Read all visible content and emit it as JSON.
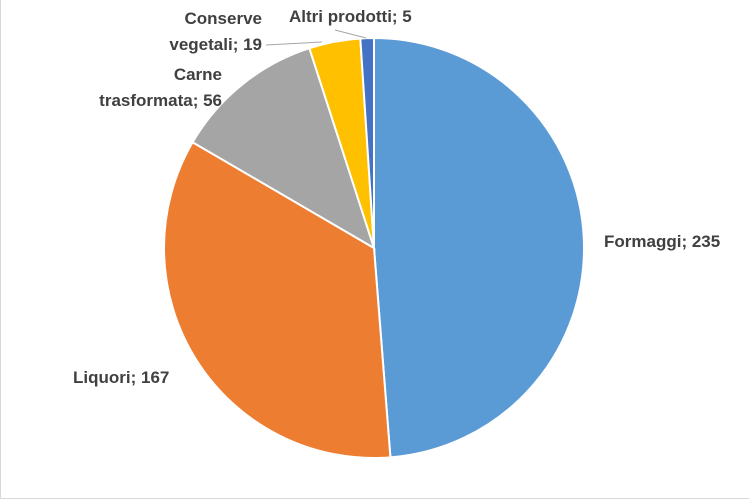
{
  "chart_data": {
    "type": "pie",
    "categories": [
      "Formaggi",
      "Liquori",
      "Carne trasformata",
      "Conserve vegetali",
      "Altri prodotti"
    ],
    "values": [
      235,
      167,
      56,
      19,
      5
    ],
    "colors": [
      "#5b9bd5",
      "#ed7d31",
      "#a5a5a5",
      "#ffc000",
      "#4472c4"
    ],
    "labels": [
      {
        "lines": [
          "Formaggi; 235"
        ]
      },
      {
        "lines": [
          "Liquori; 167"
        ]
      },
      {
        "lines": [
          "Carne",
          "trasformata; 56"
        ]
      },
      {
        "lines": [
          "Conserve",
          "vegetali; 19"
        ]
      },
      {
        "lines": [
          "Altri prodotti; 5"
        ]
      }
    ],
    "start_angle_deg": 0,
    "direction": "clockwise",
    "legend": "none",
    "title": ""
  }
}
